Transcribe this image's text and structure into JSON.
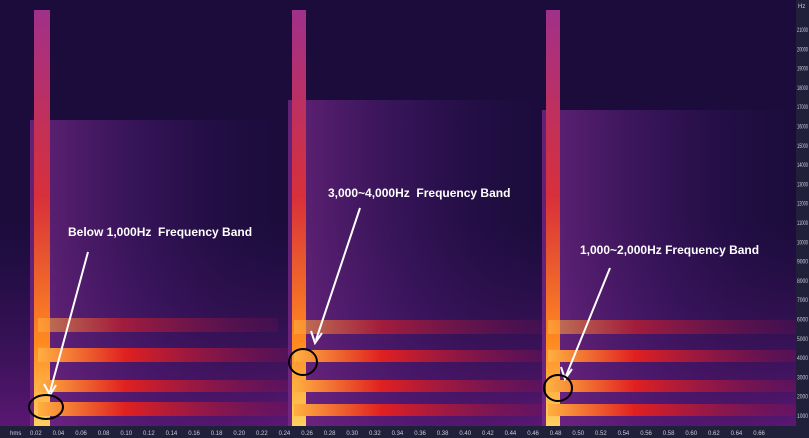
{
  "annotations": [
    {
      "label": "Below 1,000Hz  Frequency Band"
    },
    {
      "label": "3,000~4,000Hz  Frequency Band"
    },
    {
      "label": "1,000~2,000Hz Frequency Band"
    }
  ],
  "x_axis": {
    "unit": "hms",
    "labels": [
      "0.02",
      "0.04",
      "0.06",
      "0.08",
      "0.10",
      "0.12",
      "0.14",
      "0.16",
      "0.18",
      "0.20",
      "0.22",
      "0.24",
      "0.26",
      "0.28",
      "0.30",
      "0.32",
      "0.34",
      "0.36",
      "0.38",
      "0.40",
      "0.42",
      "0.44",
      "0.46",
      "0.48",
      "0.50",
      "0.52",
      "0.54",
      "0.56",
      "0.58",
      "0.60",
      "0.62",
      "0.64",
      "0.66"
    ]
  },
  "y_axis": {
    "unit": "Hz",
    "labels": [
      "21000",
      "20000",
      "19000",
      "18000",
      "17000",
      "16000",
      "15000",
      "14000",
      "13000",
      "12000",
      "11000",
      "10000",
      "9000",
      "8000",
      "7000",
      "6000",
      "5000",
      "4000",
      "3000",
      "2000",
      "1000"
    ]
  }
}
